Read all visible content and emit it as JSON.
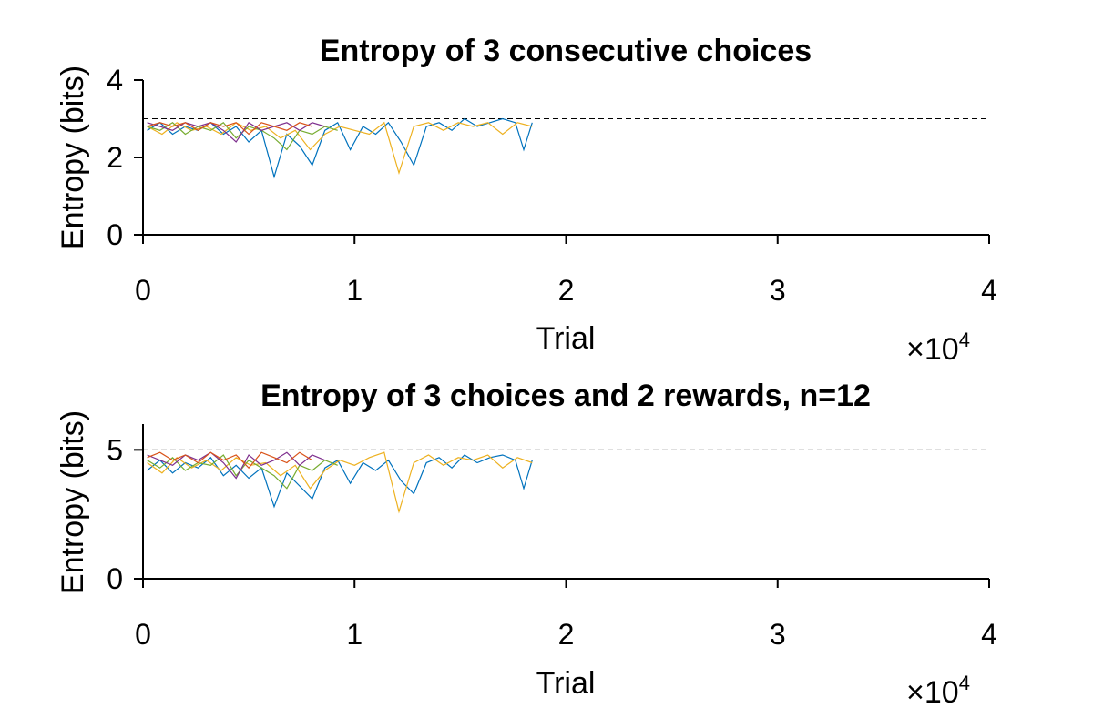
{
  "chart_data": [
    {
      "type": "line",
      "title": "Entropy of 3 consecutive choices",
      "xlabel": "Trial",
      "ylabel": "Entropy (bits)",
      "x_multiplier_label": "×10",
      "x_multiplier_exp": "4",
      "xlim": [
        0,
        40000
      ],
      "ylim": [
        0,
        4
      ],
      "xticks": [
        0,
        10000,
        20000,
        30000,
        40000
      ],
      "xtick_labels": [
        "0",
        "1",
        "2",
        "3",
        "4"
      ],
      "yticks": [
        0,
        2,
        4
      ],
      "ytick_labels": [
        "0",
        "2",
        "4"
      ],
      "reference_line": 3,
      "series": [
        {
          "color": "#0072BD",
          "x": [
            200,
            800,
            1400,
            2000,
            2600,
            3200,
            3800,
            4400,
            5000,
            5600,
            6200,
            6800,
            7400,
            8000,
            8600,
            9200,
            9800,
            10400,
            11000,
            11600,
            12200,
            12800,
            13400,
            14000,
            14600,
            15200,
            15800,
            16400,
            17000,
            17600,
            18000,
            18400
          ],
          "values": [
            2.7,
            2.9,
            2.6,
            2.8,
            2.7,
            2.9,
            2.6,
            2.8,
            2.4,
            2.7,
            1.5,
            2.6,
            2.3,
            1.8,
            2.7,
            2.9,
            2.2,
            2.8,
            2.6,
            2.9,
            2.4,
            1.8,
            2.8,
            2.9,
            2.7,
            3.0,
            2.8,
            2.9,
            3.0,
            2.9,
            2.2,
            2.9
          ]
        },
        {
          "color": "#EDB120",
          "x": [
            200,
            900,
            1600,
            2300,
            3000,
            3700,
            4400,
            5100,
            5800,
            6500,
            7200,
            7900,
            8600,
            9300,
            10000,
            10700,
            11400,
            12100,
            12800,
            13500,
            14200,
            14900,
            15600,
            16300,
            17000,
            17700,
            18400
          ],
          "values": [
            2.8,
            2.6,
            2.9,
            2.7,
            2.8,
            2.6,
            2.9,
            2.7,
            2.8,
            2.5,
            2.7,
            2.2,
            2.6,
            2.8,
            2.7,
            2.6,
            2.9,
            1.6,
            2.8,
            2.9,
            2.7,
            2.9,
            2.8,
            2.9,
            2.6,
            2.9,
            2.8
          ]
        },
        {
          "color": "#77AC30",
          "x": [
            200,
            800,
            1400,
            2000,
            2600,
            3200,
            3800,
            4400,
            5000,
            5600,
            6200,
            6800,
            7400,
            8000,
            8600,
            9200
          ],
          "values": [
            2.8,
            2.7,
            2.9,
            2.6,
            2.8,
            2.7,
            2.9,
            2.5,
            2.8,
            2.7,
            2.5,
            2.2,
            2.7,
            2.6,
            2.8,
            2.7
          ]
        },
        {
          "color": "#7E2F8E",
          "x": [
            200,
            800,
            1400,
            2000,
            2600,
            3200,
            3800,
            4400,
            5000,
            5600,
            6200,
            6800,
            7400,
            8000,
            8600
          ],
          "values": [
            2.9,
            2.8,
            2.7,
            2.9,
            2.8,
            2.9,
            2.7,
            2.4,
            2.9,
            2.7,
            2.8,
            2.9,
            2.7,
            2.9,
            2.8
          ]
        },
        {
          "color": "#D95319",
          "x": [
            200,
            800,
            1400,
            2000,
            2600,
            3200,
            3800,
            4400,
            5000,
            5600,
            6200,
            6800,
            7400,
            8000
          ],
          "values": [
            2.8,
            2.9,
            2.8,
            2.9,
            2.7,
            2.9,
            2.8,
            2.9,
            2.6,
            2.9,
            2.8,
            2.7,
            2.9,
            2.8
          ]
        }
      ]
    },
    {
      "type": "line",
      "title": "Entropy of 3 choices and 2 rewards, n=12",
      "xlabel": "Trial",
      "ylabel": "Entropy (bits)",
      "x_multiplier_label": "×10",
      "x_multiplier_exp": "4",
      "xlim": [
        0,
        40000
      ],
      "ylim": [
        0,
        6
      ],
      "xticks": [
        0,
        10000,
        20000,
        30000,
        40000
      ],
      "xtick_labels": [
        "0",
        "1",
        "2",
        "3",
        "4"
      ],
      "yticks": [
        0,
        5
      ],
      "ytick_labels": [
        "0",
        "5"
      ],
      "reference_line": 5,
      "series": [
        {
          "color": "#0072BD",
          "x": [
            200,
            800,
            1400,
            2000,
            2600,
            3200,
            3800,
            4400,
            5000,
            5600,
            6200,
            6800,
            7400,
            8000,
            8600,
            9200,
            9800,
            10400,
            11000,
            11600,
            12200,
            12800,
            13400,
            14000,
            14600,
            15200,
            15800,
            16400,
            17000,
            17600,
            18000,
            18400
          ],
          "values": [
            4.2,
            4.6,
            4.1,
            4.5,
            4.3,
            4.7,
            4.0,
            4.4,
            3.9,
            4.3,
            2.8,
            4.1,
            3.6,
            3.1,
            4.3,
            4.6,
            3.7,
            4.5,
            4.2,
            4.6,
            3.8,
            3.3,
            4.5,
            4.7,
            4.3,
            4.8,
            4.5,
            4.7,
            4.8,
            4.6,
            3.5,
            4.6
          ]
        },
        {
          "color": "#EDB120",
          "x": [
            200,
            900,
            1600,
            2300,
            3000,
            3700,
            4400,
            5100,
            5800,
            6500,
            7200,
            7900,
            8600,
            9300,
            10000,
            10700,
            11400,
            12100,
            12800,
            13500,
            14200,
            14900,
            15600,
            16300,
            17000,
            17700,
            18400
          ],
          "values": [
            4.5,
            4.1,
            4.7,
            4.3,
            4.6,
            4.2,
            4.7,
            4.4,
            4.5,
            4.0,
            4.4,
            3.5,
            4.2,
            4.6,
            4.4,
            4.7,
            4.9,
            2.6,
            4.5,
            4.8,
            4.4,
            4.7,
            4.6,
            4.8,
            4.3,
            4.7,
            4.5
          ]
        },
        {
          "color": "#77AC30",
          "x": [
            200,
            800,
            1400,
            2000,
            2600,
            3200,
            3800,
            4400,
            5000,
            5600,
            6200,
            6800,
            7400,
            8000,
            8600,
            9200
          ],
          "values": [
            4.6,
            4.3,
            4.7,
            4.2,
            4.5,
            4.4,
            4.8,
            4.0,
            4.6,
            4.3,
            4.0,
            3.5,
            4.4,
            4.2,
            4.6,
            4.4
          ]
        },
        {
          "color": "#7E2F8E",
          "x": [
            200,
            800,
            1400,
            2000,
            2600,
            3200,
            3800,
            4400,
            5000,
            5600,
            6200,
            6800,
            7400,
            8000,
            8600
          ],
          "values": [
            4.8,
            4.6,
            4.4,
            4.8,
            4.6,
            4.9,
            4.5,
            3.9,
            4.8,
            4.4,
            4.6,
            4.9,
            4.4,
            4.8,
            4.6
          ]
        },
        {
          "color": "#D95319",
          "x": [
            200,
            800,
            1400,
            2000,
            2600,
            3200,
            3800,
            4400,
            5000,
            5600,
            6200,
            6800,
            7400,
            8000
          ],
          "values": [
            4.7,
            4.9,
            4.6,
            4.8,
            4.5,
            4.9,
            4.6,
            4.8,
            4.3,
            4.9,
            4.7,
            4.5,
            4.9,
            4.6
          ]
        }
      ]
    }
  ]
}
